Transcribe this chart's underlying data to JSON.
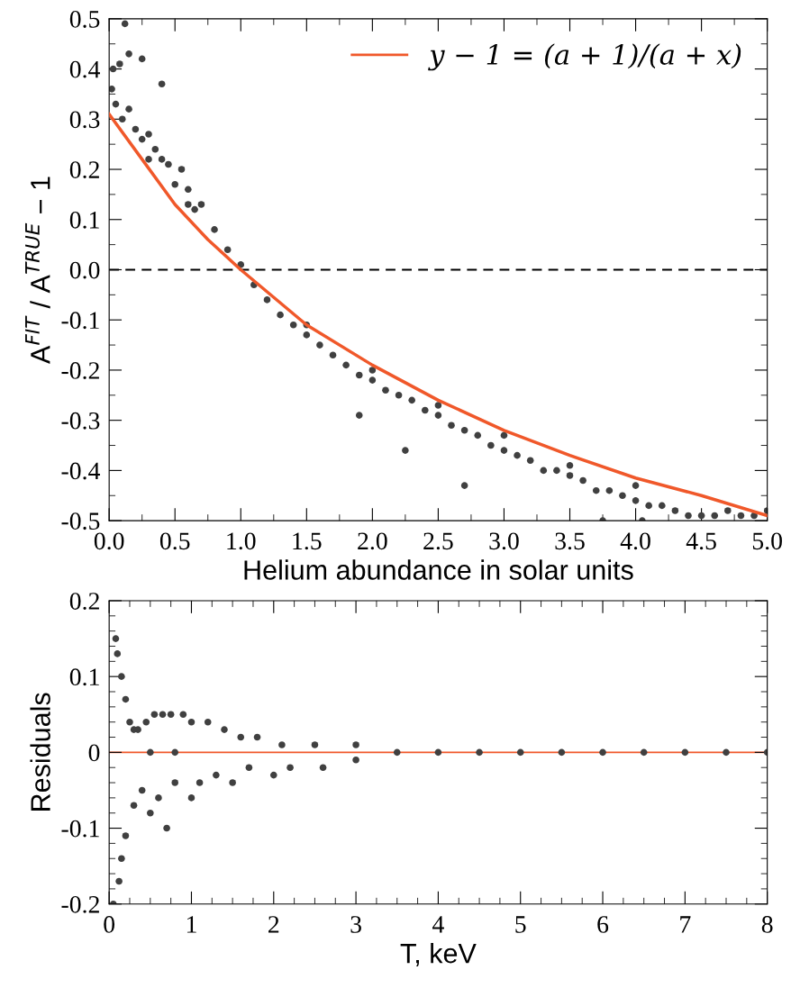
{
  "chart_data": [
    {
      "type": "scatter",
      "xlabel": "Helium abundance in solar units",
      "ylabel": "A$^{FIT}$ / A$^{TRUE}$ − 1",
      "xlim": [
        0,
        5
      ],
      "ylim": [
        -0.5,
        0.5
      ],
      "xticks": [
        {
          "value": 0,
          "label": "0.0"
        },
        {
          "value": 0.5,
          "label": "0.5"
        },
        {
          "value": 1,
          "label": "1.0"
        },
        {
          "value": 1.5,
          "label": "1.5"
        },
        {
          "value": 2,
          "label": "2.0"
        },
        {
          "value": 2.5,
          "label": "2.5"
        },
        {
          "value": 3,
          "label": "3.0"
        },
        {
          "value": 3.5,
          "label": "3.5"
        },
        {
          "value": 4,
          "label": "4.0"
        },
        {
          "value": 4.5,
          "label": "4.5"
        },
        {
          "value": 5,
          "label": "5.0"
        }
      ],
      "yticks": [
        -0.5,
        -0.4,
        -0.3,
        -0.2,
        -0.1,
        {
          "value": 0,
          "label": "0.0"
        },
        0.1,
        0.2,
        0.3,
        0.4,
        0.5
      ],
      "grid": false,
      "legend": "top right",
      "marker": "circle",
      "ref_lines": [
        {
          "axis": "y",
          "value": 0,
          "color": "#000000",
          "line_style": "dashed"
        }
      ],
      "series": [
        {
          "color": "#404040",
          "x": [
            0.02,
            0.03,
            0.05,
            0.08,
            0.1,
            0.12,
            0.15,
            0.15,
            0.2,
            0.25,
            0.25,
            0.3,
            0.3,
            0.35,
            0.4,
            0.4,
            0.45,
            0.5,
            0.55,
            0.6,
            0.6,
            0.65,
            0.7,
            0.8,
            0.9,
            1.0,
            1.1,
            1.2,
            1.3,
            1.4,
            1.5,
            1.5,
            1.6,
            1.7,
            1.8,
            1.9,
            1.9,
            2.0,
            2.0,
            2.1,
            2.2,
            2.25,
            2.3,
            2.4,
            2.5,
            2.5,
            2.6,
            2.7,
            2.7,
            2.8,
            2.9,
            3.0,
            3.0,
            3.1,
            3.2,
            3.3,
            3.4,
            3.5,
            3.5,
            3.6,
            3.7,
            3.75,
            3.8,
            3.9,
            4.0,
            4.0,
            4.05,
            4.1,
            4.2,
            4.3,
            4.4,
            4.5,
            4.6,
            4.7,
            4.8,
            4.9,
            5.0
          ],
          "values": [
            0.36,
            0.4,
            0.33,
            0.41,
            0.3,
            0.49,
            0.43,
            0.32,
            0.28,
            0.42,
            0.26,
            0.27,
            0.22,
            0.24,
            0.37,
            0.22,
            0.21,
            0.17,
            0.2,
            0.16,
            0.13,
            0.12,
            0.13,
            0.08,
            0.04,
            0.01,
            -0.03,
            -0.06,
            -0.09,
            -0.11,
            -0.13,
            -0.11,
            -0.15,
            -0.17,
            -0.19,
            -0.29,
            -0.21,
            -0.22,
            -0.2,
            -0.24,
            -0.25,
            -0.36,
            -0.26,
            -0.28,
            -0.29,
            -0.27,
            -0.31,
            -0.43,
            -0.32,
            -0.33,
            -0.35,
            -0.36,
            -0.33,
            -0.37,
            -0.38,
            -0.4,
            -0.4,
            -0.41,
            -0.39,
            -0.42,
            -0.44,
            -0.5,
            -0.44,
            -0.45,
            -0.46,
            -0.43,
            -0.5,
            -0.47,
            -0.47,
            -0.48,
            -0.49,
            -0.49,
            -0.49,
            -0.48,
            -0.49,
            -0.49,
            -0.48
          ]
        },
        {
          "type": "line",
          "name": "y − 1 = (a + 1)/(a + x)",
          "color": "#f0582a",
          "marker": "none",
          "line_style": "solid",
          "x": [
            0,
            0.25,
            0.5,
            0.75,
            1,
            1.5,
            2,
            2.5,
            3,
            3.5,
            4,
            4.5,
            5
          ],
          "values": [
            0.31,
            0.22,
            0.13,
            0.06,
            0,
            -0.11,
            -0.19,
            -0.26,
            -0.32,
            -0.37,
            -0.415,
            -0.45,
            -0.49
          ]
        }
      ]
    },
    {
      "type": "scatter",
      "xlabel": "T, keV",
      "ylabel": "Residuals",
      "xlim": [
        0,
        8
      ],
      "ylim": [
        -0.2,
        0.2
      ],
      "xticks": [
        0,
        1,
        2,
        3,
        4,
        5,
        6,
        7,
        8
      ],
      "yticks": [
        -0.2,
        -0.1,
        0,
        0.1,
        0.2
      ],
      "grid": false,
      "marker": "circle",
      "ref_lines": [
        {
          "axis": "y",
          "value": 0,
          "color": "#f0582a",
          "line_style": "solid"
        }
      ],
      "series": [
        {
          "color": "#404040",
          "x": [
            0.05,
            0.08,
            0.1,
            0.12,
            0.15,
            0.15,
            0.2,
            0.2,
            0.25,
            0.3,
            0.3,
            0.35,
            0.4,
            0.45,
            0.5,
            0.5,
            0.55,
            0.6,
            0.65,
            0.7,
            0.75,
            0.8,
            0.8,
            0.9,
            1.0,
            1.0,
            1.1,
            1.2,
            1.3,
            1.4,
            1.5,
            1.6,
            1.7,
            1.8,
            2.0,
            2.1,
            2.2,
            2.5,
            2.6,
            3.0,
            3.0,
            3.5,
            4,
            4.5,
            5,
            5.5,
            6,
            6.5,
            7,
            7.5,
            8
          ],
          "values": [
            -0.2,
            0.15,
            0.13,
            -0.17,
            0.1,
            -0.14,
            0.07,
            -0.11,
            0.04,
            -0.07,
            0.03,
            0.03,
            -0.05,
            0.04,
            -0.08,
            0.0,
            0.05,
            -0.06,
            0.05,
            -0.1,
            0.05,
            -0.04,
            0.0,
            0.05,
            -0.06,
            0.04,
            -0.04,
            0.04,
            -0.03,
            0.03,
            -0.04,
            0.02,
            -0.02,
            0.02,
            -0.03,
            0.01,
            -0.02,
            0.01,
            -0.02,
            0.01,
            -0.01,
            0.0,
            0.0,
            0.0,
            0.0,
            0.0,
            0.0,
            0.0,
            0.0,
            0.0,
            0.0
          ]
        }
      ]
    }
  ]
}
